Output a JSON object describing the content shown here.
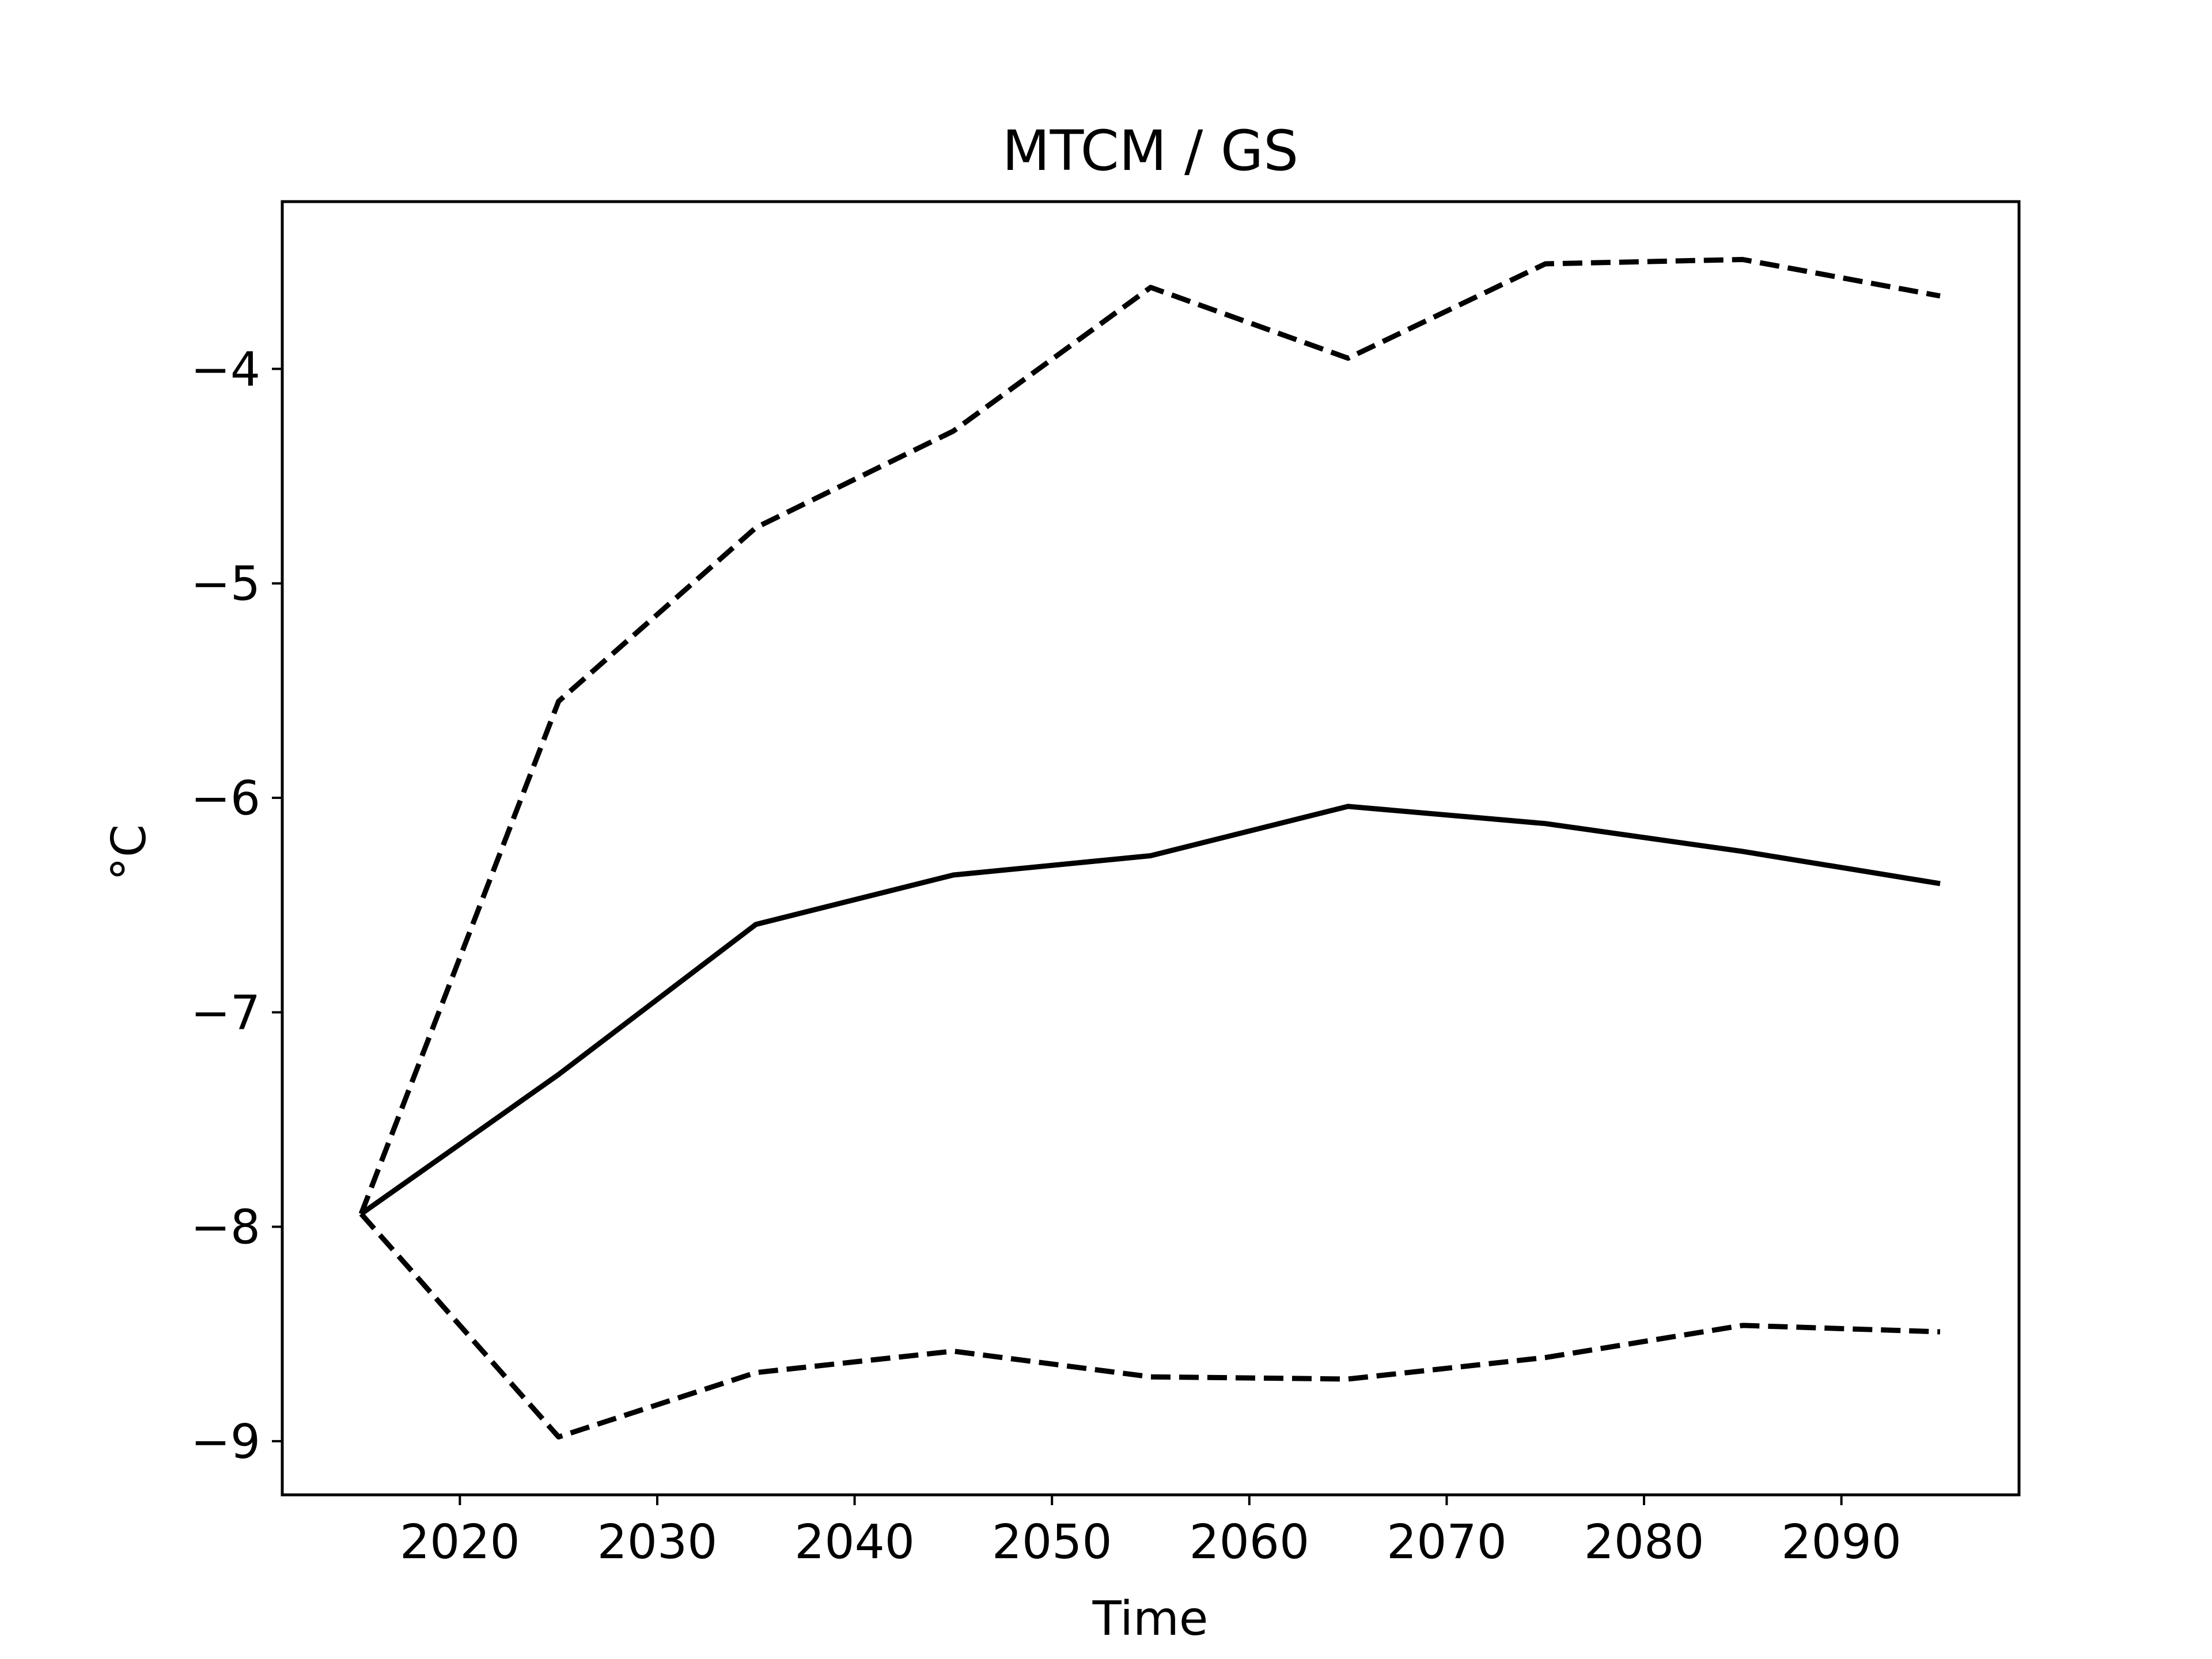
{
  "chart_data": {
    "type": "line",
    "title": "MTCM / GS",
    "xlabel": "Time",
    "ylabel": "°C",
    "xlim": [
      2011,
      2099
    ],
    "ylim": [
      -9.25,
      -3.22
    ],
    "grid": false,
    "x_ticks": [
      2020,
      2030,
      2040,
      2050,
      2060,
      2070,
      2080,
      2090
    ],
    "y_ticks": [
      -9,
      -8,
      -7,
      -6,
      -5,
      -4
    ],
    "y_tick_labels": [
      "−9",
      "−8",
      "−7",
      "−6",
      "−5",
      "−4"
    ],
    "x": [
      2015,
      2025,
      2035,
      2045,
      2055,
      2065,
      2075,
      2085,
      2095
    ],
    "series": [
      {
        "style": "solid",
        "color": "#000000",
        "values": [
          -7.94,
          -7.29,
          -6.59,
          -6.36,
          -6.27,
          -6.04,
          -6.12,
          -6.25,
          -6.4
        ]
      },
      {
        "style": "dashed",
        "color": "#000000",
        "values": [
          -7.94,
          -5.55,
          -4.74,
          -4.29,
          -3.62,
          -3.95,
          -3.51,
          -3.49,
          -3.66
        ]
      },
      {
        "style": "dashed",
        "color": "#000000",
        "values": [
          -7.94,
          -8.98,
          -8.68,
          -8.58,
          -8.7,
          -8.71,
          -8.61,
          -8.46,
          -8.49
        ]
      }
    ]
  }
}
